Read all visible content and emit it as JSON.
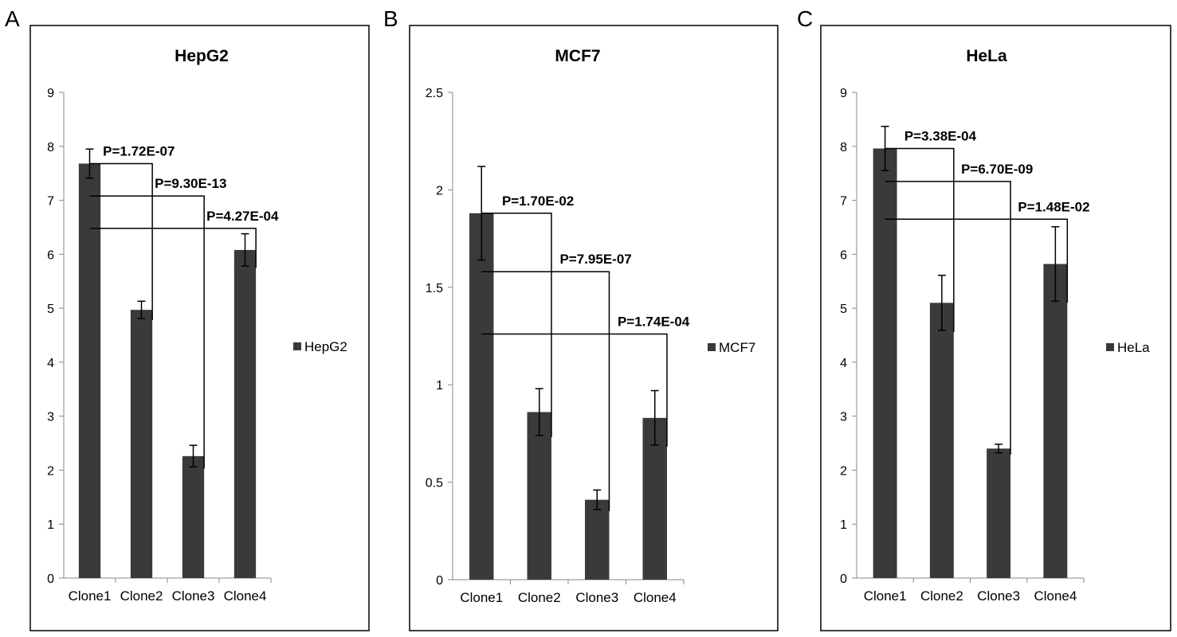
{
  "chart_data": [
    {
      "panel": "A",
      "type": "bar",
      "title": "HepG2",
      "categories": [
        "Clone1",
        "Clone2",
        "Clone3",
        "Clone4"
      ],
      "series": [
        {
          "name": "HepG2",
          "values": [
            7.68,
            4.97,
            2.26,
            6.08
          ],
          "errors": [
            0.27,
            0.16,
            0.2,
            0.3
          ]
        }
      ],
      "ylim": [
        0,
        9
      ],
      "yticks": [
        "0",
        "1",
        "2",
        "3",
        "4",
        "5",
        "6",
        "7",
        "8",
        "9"
      ],
      "legend": "right",
      "annotations": [
        {
          "from": 0,
          "to": 1,
          "y": 7.68,
          "label": "P=1.72E-07"
        },
        {
          "from": 0,
          "to": 2,
          "y": 7.08,
          "label": "P=9.30E-13"
        },
        {
          "from": 0,
          "to": 3,
          "y": 6.48,
          "label": "P=4.27E-04"
        }
      ],
      "color": "#3a3a3a"
    },
    {
      "panel": "B",
      "type": "bar",
      "title": "MCF7",
      "categories": [
        "Clone1",
        "Clone2",
        "Clone3",
        "Clone4"
      ],
      "series": [
        {
          "name": "MCF7",
          "values": [
            1.88,
            0.86,
            0.41,
            0.83
          ],
          "errors": [
            0.24,
            0.12,
            0.05,
            0.14
          ]
        }
      ],
      "ylim": [
        0,
        2.5
      ],
      "yticks": [
        "0",
        "0.5",
        "1",
        "1.5",
        "2",
        "2.5"
      ],
      "legend": "right",
      "annotations": [
        {
          "from": 0,
          "to": 1,
          "y": 1.88,
          "label": "P=1.70E-02"
        },
        {
          "from": 0,
          "to": 2,
          "y": 1.58,
          "label": "P=7.95E-07"
        },
        {
          "from": 0,
          "to": 3,
          "y": 1.26,
          "label": "P=1.74E-04"
        }
      ],
      "color": "#3a3a3a"
    },
    {
      "panel": "C",
      "type": "bar",
      "title": "HeLa",
      "categories": [
        "Clone1",
        "Clone2",
        "Clone3",
        "Clone4"
      ],
      "series": [
        {
          "name": "HeLa",
          "values": [
            7.96,
            5.1,
            2.4,
            5.82
          ],
          "errors": [
            0.41,
            0.51,
            0.08,
            0.69
          ]
        }
      ],
      "ylim": [
        0,
        9
      ],
      "yticks": [
        "0",
        "1",
        "2",
        "3",
        "4",
        "5",
        "6",
        "7",
        "8",
        "9"
      ],
      "legend": "right",
      "annotations": [
        {
          "from": 0,
          "to": 1,
          "y": 7.96,
          "label": "P=3.38E-04"
        },
        {
          "from": 0,
          "to": 2,
          "y": 7.35,
          "label": "P=6.70E-09"
        },
        {
          "from": 0,
          "to": 3,
          "y": 6.65,
          "label": "P=1.48E-02"
        }
      ],
      "color": "#3a3a3a"
    }
  ]
}
